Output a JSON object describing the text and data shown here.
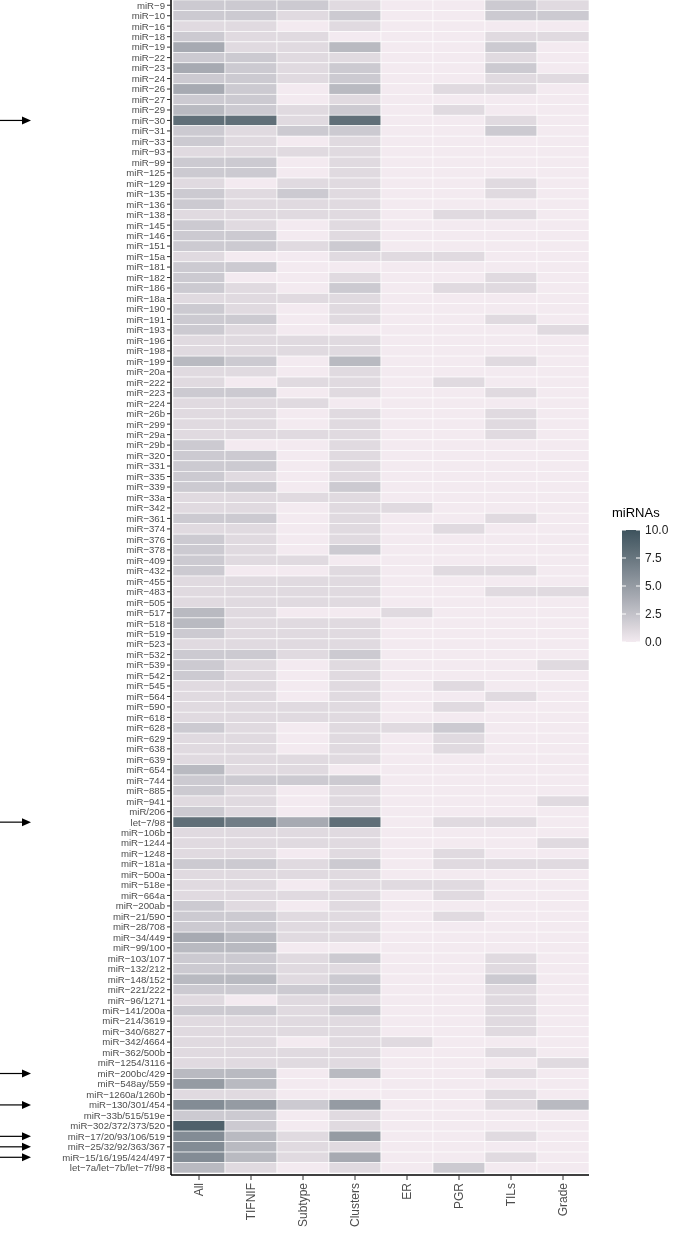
{
  "chart_data": {
    "type": "heatmap",
    "clabel": "miRNAs",
    "clim": [
      0,
      10
    ],
    "cticks": [
      {
        "value": 0,
        "label": "0.0"
      },
      {
        "value": 2.5,
        "label": "2.5"
      },
      {
        "value": 5,
        "label": "5.0"
      },
      {
        "value": 7.5,
        "label": "7.5"
      },
      {
        "value": 10,
        "label": "10.0"
      }
    ],
    "categories": [
      "All",
      "TIFNIF",
      "Subtype",
      "Clusters",
      "ER",
      "PGR",
      "TILs",
      "Grade"
    ],
    "y_categories": [
      "miR−9",
      "miR−10",
      "miR−16",
      "miR−18",
      "miR−19",
      "miR−22",
      "miR−23",
      "miR−24",
      "miR−26",
      "miR−27",
      "miR−29",
      "miR−30",
      "miR−31",
      "miR−33",
      "miR−93",
      "miR−99",
      "miR−125",
      "miR−129",
      "miR−135",
      "miR−136",
      "miR−138",
      "miR−145",
      "miR−146",
      "miR−151",
      "miR−15a",
      "miR−181",
      "miR−182",
      "miR−186",
      "miR−18a",
      "miR−190",
      "miR−191",
      "miR−193",
      "miR−196",
      "miR−198",
      "miR−199",
      "miR−20a",
      "miR−222",
      "miR−223",
      "miR−224",
      "miR−26b",
      "miR−299",
      "miR−29a",
      "miR−29b",
      "miR−320",
      "miR−331",
      "miR−335",
      "miR−339",
      "miR−33a",
      "miR−342",
      "miR−361",
      "miR−374",
      "miR−376",
      "miR−378",
      "miR−409",
      "miR−432",
      "miR−455",
      "miR−483",
      "miR−505",
      "miR−517",
      "miR−518",
      "miR−519",
      "miR−523",
      "miR−532",
      "miR−539",
      "miR−542",
      "miR−545",
      "miR−564",
      "miR−590",
      "miR−618",
      "miR−628",
      "miR−629",
      "miR−638",
      "miR−639",
      "miR−654",
      "miR−744",
      "miR−885",
      "miR−941",
      "miR/206",
      "let−7/98",
      "miR−106b",
      "miR−1244",
      "miR−1248",
      "miR−181a",
      "miR−500a",
      "miR−518e",
      "miR−664a",
      "miR−200ab",
      "miR−21/590",
      "miR−28/708",
      "miR−34/449",
      "miR−99/100",
      "miR−103/107",
      "miR−132/212",
      "miR−148/152",
      "miR−221/222",
      "miR−96/1271",
      "miR−141/200a",
      "miR−214/3619",
      "miR−340/6827",
      "miR−342/4664",
      "miR−362/500b",
      "miR−1254/3116",
      "miR−200bc/429",
      "miR−548ay/559",
      "miR−1260a/1260b",
      "miR−130/301/454",
      "miR−33b/515/519e",
      "miR−302/372/373/520",
      "miR−17/20/93/106/519",
      "miR−25/32/92/363/367",
      "miR−15/16/195/424/497",
      "let−7a/let−7b/let−7f/98"
    ],
    "cells": [
      [
        2,
        2,
        2,
        1,
        0,
        0,
        2,
        1
      ],
      [
        2,
        2,
        1,
        2,
        0,
        0,
        2,
        2
      ],
      [
        1,
        1,
        0,
        1,
        0,
        0,
        0,
        0
      ],
      [
        2,
        1,
        1,
        0,
        0,
        0,
        1,
        1
      ],
      [
        4,
        1,
        1,
        3,
        0,
        0,
        2,
        0
      ],
      [
        2,
        2,
        1,
        1,
        0,
        0,
        1,
        0
      ],
      [
        4,
        2,
        1,
        2,
        0,
        0,
        2,
        0
      ],
      [
        2,
        2,
        1,
        2,
        0,
        0,
        1,
        1
      ],
      [
        4,
        2,
        0,
        3,
        0,
        1,
        1,
        0
      ],
      [
        2,
        2,
        0,
        1,
        0,
        0,
        0,
        0
      ],
      [
        3,
        2,
        1,
        2,
        0,
        1,
        0,
        0
      ],
      [
        8,
        8,
        1,
        8,
        0,
        0,
        1,
        0
      ],
      [
        2,
        1,
        2,
        2,
        0,
        0,
        2,
        0
      ],
      [
        2,
        1,
        0,
        1,
        0,
        0,
        0,
        0
      ],
      [
        1,
        1,
        1,
        1,
        0,
        0,
        0,
        0
      ],
      [
        2,
        2,
        0,
        1,
        0,
        0,
        0,
        0
      ],
      [
        2,
        2,
        0,
        1,
        0,
        0,
        0,
        0
      ],
      [
        1,
        0,
        1,
        1,
        0,
        0,
        1,
        0
      ],
      [
        2,
        1,
        2,
        1,
        0,
        0,
        1,
        0
      ],
      [
        2,
        1,
        1,
        1,
        0,
        0,
        0,
        0
      ],
      [
        1,
        1,
        1,
        1,
        0,
        1,
        1,
        0
      ],
      [
        2,
        1,
        0,
        1,
        0,
        0,
        0,
        0
      ],
      [
        2,
        2,
        0,
        1,
        0,
        0,
        0,
        0
      ],
      [
        2,
        2,
        1,
        2,
        0,
        0,
        0,
        0
      ],
      [
        1,
        0,
        0,
        1,
        1,
        1,
        0,
        0
      ],
      [
        2,
        2,
        0,
        0,
        0,
        0,
        0,
        0
      ],
      [
        2,
        0,
        0,
        1,
        0,
        0,
        1,
        0
      ],
      [
        2,
        1,
        0,
        2,
        0,
        1,
        1,
        0
      ],
      [
        1,
        1,
        1,
        1,
        0,
        0,
        0,
        0
      ],
      [
        2,
        1,
        0,
        1,
        0,
        0,
        0,
        0
      ],
      [
        2,
        2,
        0,
        1,
        0,
        0,
        1,
        0
      ],
      [
        2,
        1,
        0,
        0,
        0,
        0,
        0,
        1
      ],
      [
        1,
        1,
        1,
        1,
        0,
        0,
        0,
        0
      ],
      [
        1,
        1,
        1,
        1,
        0,
        0,
        0,
        0
      ],
      [
        3,
        2,
        0,
        3,
        0,
        0,
        1,
        0
      ],
      [
        1,
        1,
        0,
        1,
        0,
        0,
        0,
        0
      ],
      [
        1,
        0,
        1,
        1,
        0,
        1,
        0,
        0
      ],
      [
        2,
        2,
        0,
        1,
        0,
        0,
        1,
        0
      ],
      [
        1,
        1,
        1,
        0,
        0,
        0,
        0,
        0
      ],
      [
        1,
        1,
        0,
        1,
        0,
        0,
        1,
        0
      ],
      [
        1,
        1,
        0,
        1,
        0,
        0,
        1,
        0
      ],
      [
        1,
        1,
        1,
        1,
        0,
        0,
        1,
        0
      ],
      [
        2,
        0,
        0,
        1,
        0,
        0,
        0,
        0
      ],
      [
        2,
        2,
        0,
        1,
        0,
        0,
        0,
        0
      ],
      [
        2,
        2,
        0,
        1,
        0,
        0,
        0,
        0
      ],
      [
        2,
        1,
        0,
        1,
        0,
        0,
        0,
        0
      ],
      [
        2,
        2,
        0,
        2,
        0,
        0,
        0,
        0
      ],
      [
        1,
        1,
        1,
        1,
        0,
        0,
        0,
        0
      ],
      [
        1,
        1,
        0,
        1,
        1,
        0,
        0,
        0
      ],
      [
        2,
        2,
        0,
        1,
        0,
        0,
        1,
        0
      ],
      [
        1,
        1,
        0,
        1,
        0,
        1,
        0,
        0
      ],
      [
        2,
        1,
        0,
        1,
        0,
        0,
        0,
        0
      ],
      [
        2,
        1,
        0,
        2,
        0,
        0,
        0,
        0
      ],
      [
        2,
        1,
        1,
        0,
        0,
        0,
        0,
        0
      ],
      [
        2,
        0,
        0,
        1,
        0,
        1,
        1,
        0
      ],
      [
        1,
        1,
        1,
        1,
        0,
        0,
        0,
        0
      ],
      [
        1,
        1,
        1,
        1,
        0,
        0,
        1,
        1
      ],
      [
        1,
        1,
        1,
        1,
        0,
        0,
        0,
        0
      ],
      [
        3,
        1,
        0,
        0,
        1,
        0,
        0,
        0
      ],
      [
        3,
        1,
        1,
        1,
        0,
        0,
        0,
        0
      ],
      [
        2,
        1,
        1,
        1,
        0,
        0,
        0,
        0
      ],
      [
        1,
        1,
        1,
        1,
        0,
        0,
        0,
        0
      ],
      [
        2,
        2,
        1,
        2,
        0,
        0,
        0,
        0
      ],
      [
        2,
        1,
        0,
        1,
        0,
        0,
        0,
        1
      ],
      [
        2,
        1,
        0,
        1,
        0,
        0,
        0,
        0
      ],
      [
        1,
        1,
        0,
        1,
        0,
        1,
        0,
        0
      ],
      [
        1,
        1,
        0,
        1,
        0,
        0,
        1,
        0
      ],
      [
        1,
        1,
        1,
        1,
        0,
        1,
        0,
        0
      ],
      [
        1,
        1,
        1,
        1,
        0,
        0,
        0,
        0
      ],
      [
        2,
        1,
        0,
        1,
        1,
        2,
        0,
        0
      ],
      [
        1,
        1,
        0,
        1,
        0,
        1,
        0,
        0
      ],
      [
        1,
        1,
        0,
        1,
        0,
        1,
        0,
        0
      ],
      [
        1,
        1,
        1,
        1,
        0,
        0,
        0,
        0
      ],
      [
        3,
        1,
        1,
        0,
        0,
        0,
        0,
        0
      ],
      [
        2,
        2,
        2,
        2,
        0,
        0,
        0,
        0
      ],
      [
        2,
        1,
        0,
        1,
        0,
        0,
        0,
        0
      ],
      [
        1,
        1,
        0,
        1,
        0,
        0,
        0,
        1
      ],
      [
        2,
        1,
        0,
        1,
        0,
        0,
        0,
        0
      ],
      [
        8,
        7,
        4,
        8,
        0,
        1,
        1,
        0
      ],
      [
        1,
        1,
        1,
        1,
        0,
        0,
        0,
        0
      ],
      [
        1,
        1,
        1,
        1,
        0,
        0,
        0,
        1
      ],
      [
        1,
        1,
        0,
        1,
        0,
        1,
        0,
        0
      ],
      [
        2,
        2,
        1,
        2,
        0,
        1,
        1,
        1
      ],
      [
        1,
        1,
        1,
        1,
        0,
        0,
        0,
        0
      ],
      [
        1,
        1,
        0,
        1,
        1,
        1,
        0,
        0
      ],
      [
        1,
        1,
        1,
        1,
        0,
        1,
        0,
        0
      ],
      [
        2,
        1,
        0,
        1,
        0,
        0,
        0,
        0
      ],
      [
        2,
        2,
        1,
        1,
        0,
        1,
        0,
        0
      ],
      [
        2,
        2,
        1,
        1,
        0,
        0,
        0,
        0
      ],
      [
        4,
        3,
        1,
        1,
        0,
        0,
        0,
        0
      ],
      [
        3,
        3,
        0,
        0,
        0,
        0,
        0,
        0
      ],
      [
        2,
        2,
        1,
        2,
        0,
        0,
        1,
        0
      ],
      [
        2,
        2,
        1,
        1,
        0,
        0,
        1,
        0
      ],
      [
        3,
        3,
        1,
        2,
        0,
        0,
        2,
        0
      ],
      [
        2,
        2,
        2,
        2,
        0,
        0,
        1,
        0
      ],
      [
        1,
        0,
        1,
        1,
        0,
        0,
        1,
        0
      ],
      [
        2,
        2,
        1,
        2,
        0,
        0,
        1,
        0
      ],
      [
        1,
        1,
        1,
        1,
        0,
        0,
        1,
        0
      ],
      [
        1,
        1,
        1,
        1,
        0,
        0,
        1,
        0
      ],
      [
        1,
        1,
        0,
        1,
        1,
        0,
        0,
        0
      ],
      [
        1,
        1,
        1,
        1,
        0,
        0,
        1,
        0
      ],
      [
        1,
        1,
        1,
        1,
        0,
        0,
        0,
        1
      ],
      [
        3,
        3,
        0,
        3,
        0,
        0,
        1,
        0
      ],
      [
        5,
        3,
        0,
        0,
        0,
        0,
        0,
        0
      ],
      [
        1,
        1,
        0,
        0,
        0,
        0,
        1,
        0
      ],
      [
        6,
        5,
        2,
        5,
        0,
        0,
        1,
        3
      ],
      [
        2,
        2,
        0,
        1,
        0,
        0,
        0,
        0
      ],
      [
        9,
        2,
        0,
        1,
        0,
        0,
        0,
        0
      ],
      [
        6,
        3,
        1,
        5,
        0,
        0,
        1,
        0
      ],
      [
        6,
        3,
        1,
        1,
        0,
        0,
        0,
        0
      ],
      [
        6,
        3,
        1,
        4,
        0,
        0,
        1,
        0
      ],
      [
        3,
        1,
        0,
        1,
        0,
        2,
        0,
        0
      ]
    ]
  }
}
